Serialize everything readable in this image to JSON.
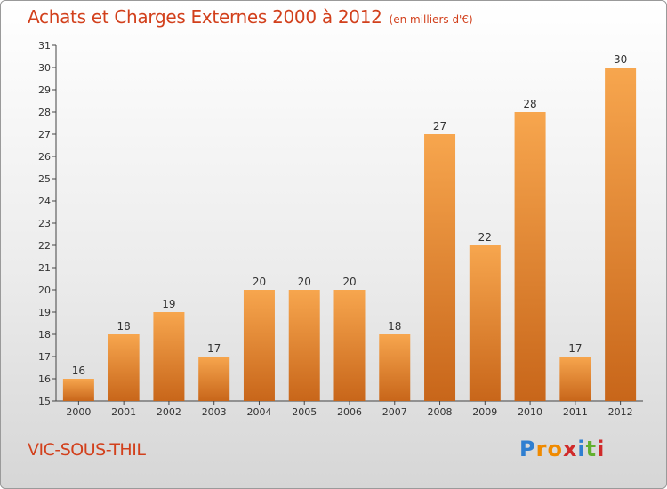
{
  "title": "Achats et Charges Externes 2000 à 2012",
  "unit_note": "(en milliers d'€)",
  "commune": "VIC-SOUS-THIL",
  "logo": {
    "text": "Proxiti",
    "letters": [
      "P",
      "r",
      "o",
      "x",
      "i",
      "t",
      "i"
    ],
    "colors": [
      "#2f7fd1",
      "#f08a00",
      "#f08a00",
      "#d02a2a",
      "#2f7fd1",
      "#62b02e",
      "#d02a2a"
    ]
  },
  "colors": {
    "title": "#d2401c",
    "bar_light": "#f7a64e",
    "bar_dark": "#c8661a"
  },
  "chart_data": {
    "type": "bar",
    "title": "Achats et Charges Externes 2000 à 2012",
    "categories": [
      "2000",
      "2001",
      "2002",
      "2003",
      "2004",
      "2005",
      "2006",
      "2007",
      "2008",
      "2009",
      "2010",
      "2011",
      "2012"
    ],
    "values": [
      16,
      18,
      19,
      17,
      20,
      20,
      20,
      18,
      27,
      22,
      28,
      17,
      30
    ],
    "ylim": [
      15,
      31
    ],
    "yticks": [
      "15",
      "16",
      "17",
      "18",
      "19",
      "20",
      "21",
      "22",
      "23",
      "24",
      "25",
      "26",
      "27",
      "28",
      "29",
      "30",
      "31"
    ],
    "grid": false,
    "data_labels": true
  }
}
